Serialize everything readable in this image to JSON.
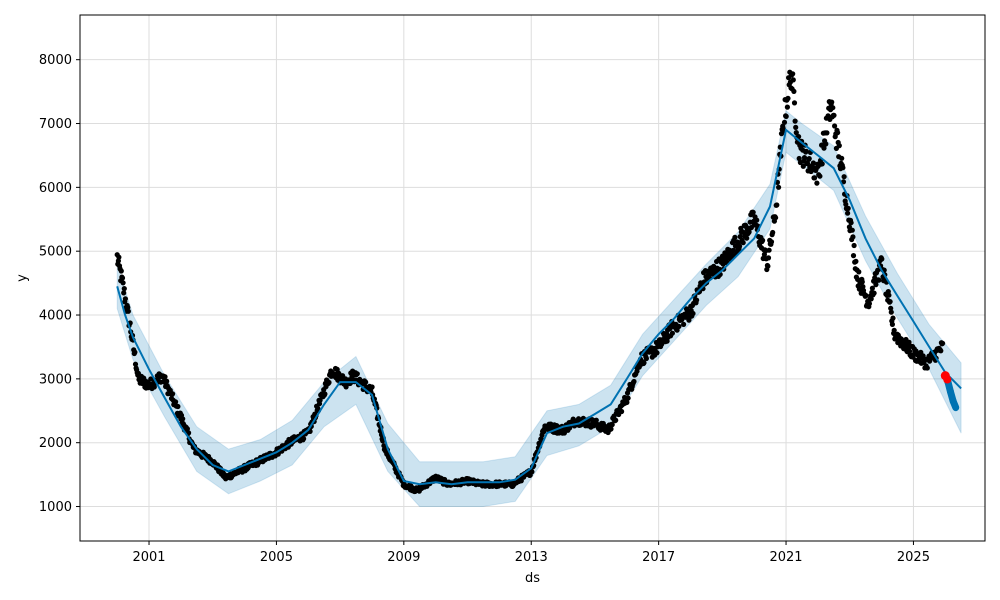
{
  "chart_data": {
    "type": "line",
    "title": "",
    "xlabel": "ds",
    "ylabel": "y",
    "x_range": [
      "1998-11-01",
      "2027-04-01"
    ],
    "ylim": [
      460,
      8700
    ],
    "grid": true,
    "x_ticks": [
      {
        "date": "2001-01-01",
        "label": "2001"
      },
      {
        "date": "2005-01-01",
        "label": "2005"
      },
      {
        "date": "2009-01-01",
        "label": "2009"
      },
      {
        "date": "2013-01-01",
        "label": "2013"
      },
      {
        "date": "2017-01-01",
        "label": "2017"
      },
      {
        "date": "2021-01-01",
        "label": "2021"
      },
      {
        "date": "2025-01-01",
        "label": "2025"
      }
    ],
    "y_ticks": [
      {
        "value": 1000,
        "label": "1000"
      },
      {
        "value": 2000,
        "label": "2000"
      },
      {
        "value": 3000,
        "label": "3000"
      },
      {
        "value": 4000,
        "label": "4000"
      },
      {
        "value": 5000,
        "label": "5000"
      },
      {
        "value": 6000,
        "label": "6000"
      },
      {
        "value": 7000,
        "label": "7000"
      },
      {
        "value": 8000,
        "label": "8000"
      }
    ],
    "colors": {
      "observed": "#000000",
      "trend": "#0072B2",
      "uncertainty": "#0072B2",
      "highlight": "#ff0000",
      "grid": "#dddddd"
    },
    "series": [
      {
        "role": "forecast-trend",
        "x": [
          "2000-01-01",
          "2000-04-01",
          "2000-07-01",
          "2001-01-01",
          "2001-07-01",
          "2002-01-01",
          "2002-07-01",
          "2003-01-01",
          "2003-07-01",
          "2004-01-01",
          "2004-07-01",
          "2005-01-01",
          "2005-07-01",
          "2006-01-01",
          "2006-07-01",
          "2007-01-01",
          "2007-07-01",
          "2008-01-01",
          "2008-07-01",
          "2009-01-01",
          "2009-07-01",
          "2010-01-01",
          "2010-07-01",
          "2011-01-01",
          "2011-07-01",
          "2012-01-01",
          "2012-07-01",
          "2013-01-01",
          "2013-07-01",
          "2014-01-01",
          "2014-07-01",
          "2015-01-01",
          "2015-07-01",
          "2016-01-01",
          "2016-07-01",
          "2017-01-01",
          "2017-07-01",
          "2018-01-01",
          "2018-07-01",
          "2019-01-01",
          "2019-07-01",
          "2020-01-01",
          "2020-07-01",
          "2021-01-01",
          "2021-07-01",
          "2022-01-01",
          "2022-07-01",
          "2023-01-01",
          "2023-07-01",
          "2024-01-01",
          "2024-07-01",
          "2025-01-01",
          "2025-07-01",
          "2026-01-01",
          "2026-07-01"
        ],
        "y": [
          4450,
          4000,
          3650,
          3150,
          2700,
          2250,
          1900,
          1650,
          1550,
          1650,
          1750,
          1850,
          2000,
          2200,
          2600,
          2950,
          2950,
          2750,
          1900,
          1400,
          1350,
          1380,
          1350,
          1380,
          1380,
          1380,
          1420,
          1600,
          2150,
          2250,
          2300,
          2450,
          2600,
          3000,
          3400,
          3700,
          3950,
          4250,
          4500,
          4700,
          4950,
          5200,
          5700,
          6900,
          6700,
          6500,
          6300,
          5800,
          5200,
          4700,
          4300,
          3900,
          3500,
          3100,
          2850
        ]
      },
      {
        "role": "uncertainty-upper",
        "x": [
          "2000-01-01",
          "2000-07-01",
          "2001-07-01",
          "2002-07-01",
          "2003-07-01",
          "2004-07-01",
          "2005-07-01",
          "2006-07-01",
          "2007-07-01",
          "2008-07-01",
          "2009-07-01",
          "2010-07-01",
          "2011-07-01",
          "2012-07-01",
          "2013-07-01",
          "2014-07-01",
          "2015-07-01",
          "2016-07-01",
          "2017-07-01",
          "2018-07-01",
          "2019-07-01",
          "2020-07-01",
          "2021-01-01",
          "2021-07-01",
          "2022-07-01",
          "2023-07-01",
          "2024-07-01",
          "2025-07-01",
          "2026-07-01"
        ],
        "y": [
          4800,
          4000,
          3050,
          2250,
          1900,
          2050,
          2350,
          2950,
          3350,
          2300,
          1700,
          1700,
          1700,
          1780,
          2500,
          2600,
          2900,
          3700,
          4250,
          4800,
          5300,
          6050,
          7200,
          7000,
          6650,
          5550,
          4650,
          3850,
          3250
        ]
      },
      {
        "role": "uncertainty-lower",
        "x": [
          "2000-01-01",
          "2000-07-01",
          "2001-07-01",
          "2002-07-01",
          "2003-07-01",
          "2004-07-01",
          "2005-07-01",
          "2006-07-01",
          "2007-07-01",
          "2008-07-01",
          "2009-07-01",
          "2010-07-01",
          "2011-07-01",
          "2012-07-01",
          "2013-07-01",
          "2014-07-01",
          "2015-07-01",
          "2016-07-01",
          "2017-07-01",
          "2018-07-01",
          "2019-07-01",
          "2020-07-01",
          "2021-01-01",
          "2021-07-01",
          "2022-07-01",
          "2023-07-01",
          "2024-07-01",
          "2025-07-01",
          "2026-07-01"
        ],
        "y": [
          4100,
          3300,
          2400,
          1550,
          1200,
          1400,
          1650,
          2250,
          2600,
          1550,
          1000,
          1000,
          1000,
          1080,
          1800,
          1950,
          2250,
          3050,
          3600,
          4150,
          4600,
          5350,
          6550,
          6350,
          5950,
          4850,
          3950,
          3150,
          2150
        ]
      },
      {
        "role": "observed-anchors",
        "x": [
          "2000-01-01",
          "2000-03-01",
          "2000-06-01",
          "2000-09-01",
          "2001-01-01",
          "2001-06-01",
          "2002-01-01",
          "2002-06-01",
          "2003-01-01",
          "2003-06-01",
          "2004-01-01",
          "2004-06-01",
          "2005-01-01",
          "2005-06-01",
          "2006-01-01",
          "2006-06-01",
          "2006-10-01",
          "2007-03-01",
          "2007-06-01",
          "2008-01-01",
          "2008-06-01",
          "2009-01-01",
          "2009-06-01",
          "2010-01-01",
          "2010-06-01",
          "2011-01-01",
          "2011-06-01",
          "2012-01-01",
          "2012-06-01",
          "2013-01-01",
          "2013-06-01",
          "2014-01-01",
          "2014-06-01",
          "2015-01-01",
          "2015-06-01",
          "2016-01-01",
          "2016-06-01",
          "2017-01-01",
          "2017-06-01",
          "2018-01-01",
          "2018-06-01",
          "2019-01-01",
          "2019-06-01",
          "2020-01-01",
          "2020-06-01",
          "2020-09-01",
          "2020-12-01",
          "2021-03-01",
          "2021-06-01",
          "2021-10-01",
          "2022-01-01",
          "2022-06-01",
          "2022-10-01",
          "2023-01-01",
          "2023-04-01",
          "2023-08-01",
          "2024-01-01",
          "2024-06-01",
          "2025-01-01",
          "2025-06-01",
          "2025-12-01"
        ],
        "y": [
          4900,
          4500,
          3800,
          3000,
          2900,
          3050,
          2400,
          1900,
          1700,
          1450,
          1600,
          1700,
          1850,
          2000,
          2150,
          2700,
          3150,
          2950,
          3050,
          2800,
          1900,
          1350,
          1250,
          1450,
          1350,
          1400,
          1350,
          1350,
          1350,
          1550,
          2250,
          2200,
          2350,
          2300,
          2200,
          2700,
          3300,
          3500,
          3800,
          4050,
          4550,
          4800,
          5100,
          5500,
          4800,
          5600,
          7000,
          7800,
          6600,
          6400,
          6200,
          7300,
          6300,
          5500,
          4600,
          4200,
          4800,
          3700,
          3400,
          3250,
          3500
        ]
      },
      {
        "role": "future-forecast-cluster",
        "x": [
          "2026-01-01",
          "2026-02-01",
          "2026-03-01",
          "2026-04-01",
          "2026-05-01"
        ],
        "y": [
          3050,
          2950,
          2800,
          2650,
          2550
        ]
      }
    ]
  }
}
